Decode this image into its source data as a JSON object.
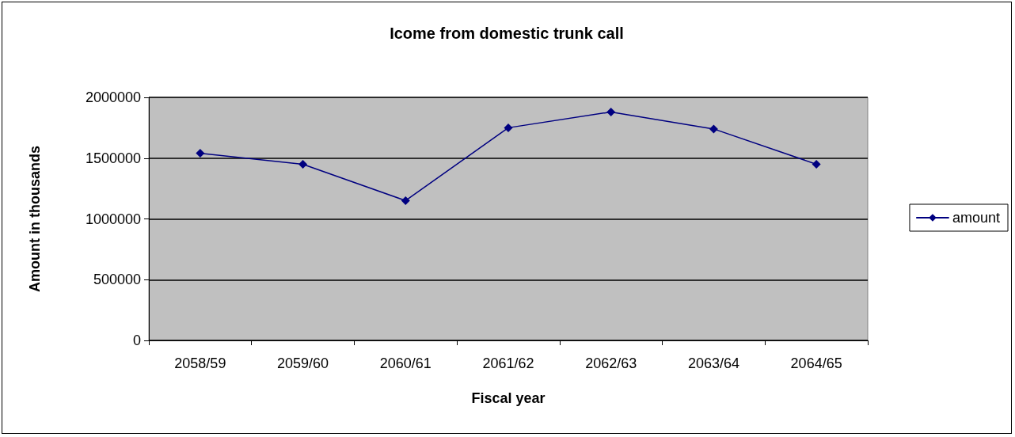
{
  "chart_data": {
    "type": "line",
    "title": "Icome from domestic trunk call",
    "xlabel": "Fiscal year",
    "ylabel": "Amount in thousands",
    "categories": [
      "2058/59",
      "2059/60",
      "2060/61",
      "2061/62",
      "2062/63",
      "2063/64",
      "2064/65"
    ],
    "series": [
      {
        "name": "amount",
        "color": "#000080",
        "values": [
          1540000,
          1450000,
          1150000,
          1750000,
          1880000,
          1740000,
          1450000
        ]
      }
    ],
    "ylim": [
      0,
      2000000
    ],
    "yticks": [
      0,
      500000,
      1000000,
      1500000,
      2000000
    ],
    "grid": "y",
    "legend": "right",
    "marker": "diamond",
    "line_style": "solid"
  }
}
